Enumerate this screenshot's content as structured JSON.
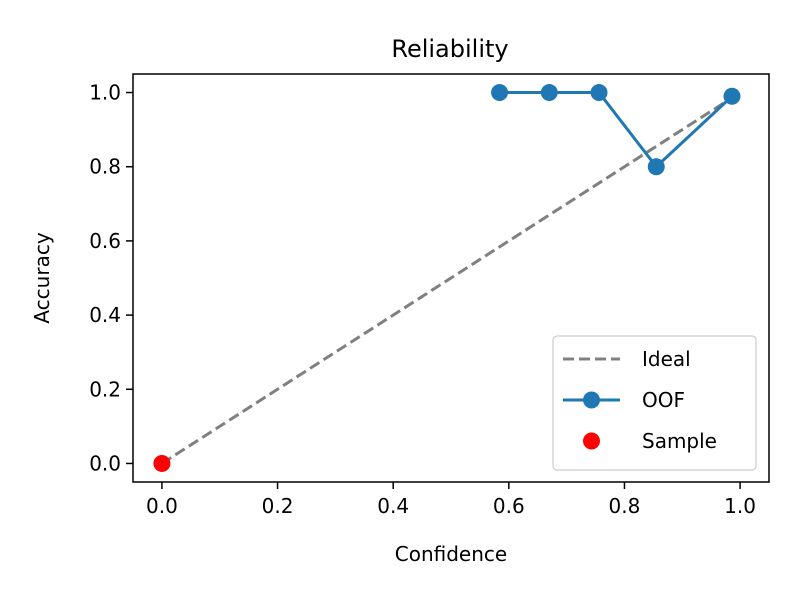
{
  "chart_data": {
    "type": "line",
    "title": "Reliability",
    "xlabel": "Confidence",
    "ylabel": "Accuracy",
    "xlim": [
      -0.05,
      1.05
    ],
    "ylim": [
      -0.05,
      1.05
    ],
    "x_ticks": [
      0.0,
      0.2,
      0.4,
      0.6,
      0.8,
      1.0
    ],
    "x_tick_labels": [
      "0.0",
      "0.2",
      "0.4",
      "0.6",
      "0.8",
      "1.0"
    ],
    "y_ticks": [
      0.0,
      0.2,
      0.4,
      0.6,
      0.8,
      1.0
    ],
    "y_tick_labels": [
      "0.0",
      "0.2",
      "0.4",
      "0.6",
      "0.8",
      "1.0"
    ],
    "grid": false,
    "legend_position": "lower-right",
    "series": [
      {
        "name": "Ideal",
        "kind": "line",
        "style": "dashed",
        "color": "#808080",
        "x": [
          0.0,
          0.99
        ],
        "y": [
          0.0,
          0.99
        ]
      },
      {
        "name": "OOF",
        "kind": "line-marker",
        "color": "#1f77b4",
        "x": [
          0.584,
          0.67,
          0.756,
          0.855,
          0.986
        ],
        "y": [
          1.0,
          1.0,
          1.0,
          0.8,
          0.99
        ]
      },
      {
        "name": "Sample",
        "kind": "scatter",
        "color": "#ff0000",
        "x": [
          0.0
        ],
        "y": [
          0.0
        ]
      }
    ]
  }
}
